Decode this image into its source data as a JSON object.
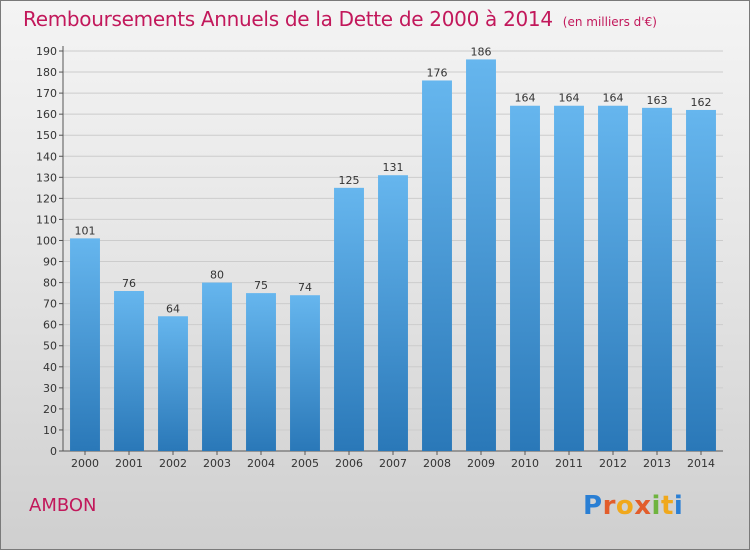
{
  "title": "Remboursements Annuels de la Dette de 2000 à 2014",
  "subtitle": "(en milliers d'€)",
  "commune": "AMBON",
  "brand": "Proxiti",
  "colors": {
    "bar_top": "#66b6ee",
    "bar_bottom": "#2a78b8",
    "title": "#c2185b",
    "grid": "#cccccc"
  },
  "chart_data": {
    "type": "bar",
    "categories": [
      "2000",
      "2001",
      "2002",
      "2003",
      "2004",
      "2005",
      "2006",
      "2007",
      "2008",
      "2009",
      "2010",
      "2011",
      "2012",
      "2013",
      "2014"
    ],
    "values": [
      101,
      76,
      64,
      80,
      75,
      74,
      125,
      131,
      176,
      186,
      164,
      164,
      164,
      163,
      162
    ],
    "ylim": [
      0,
      190
    ],
    "yticks": [
      0,
      10,
      20,
      30,
      40,
      50,
      60,
      70,
      80,
      90,
      100,
      110,
      120,
      130,
      140,
      150,
      160,
      170,
      180,
      190
    ],
    "grid": true,
    "data_labels": true
  }
}
